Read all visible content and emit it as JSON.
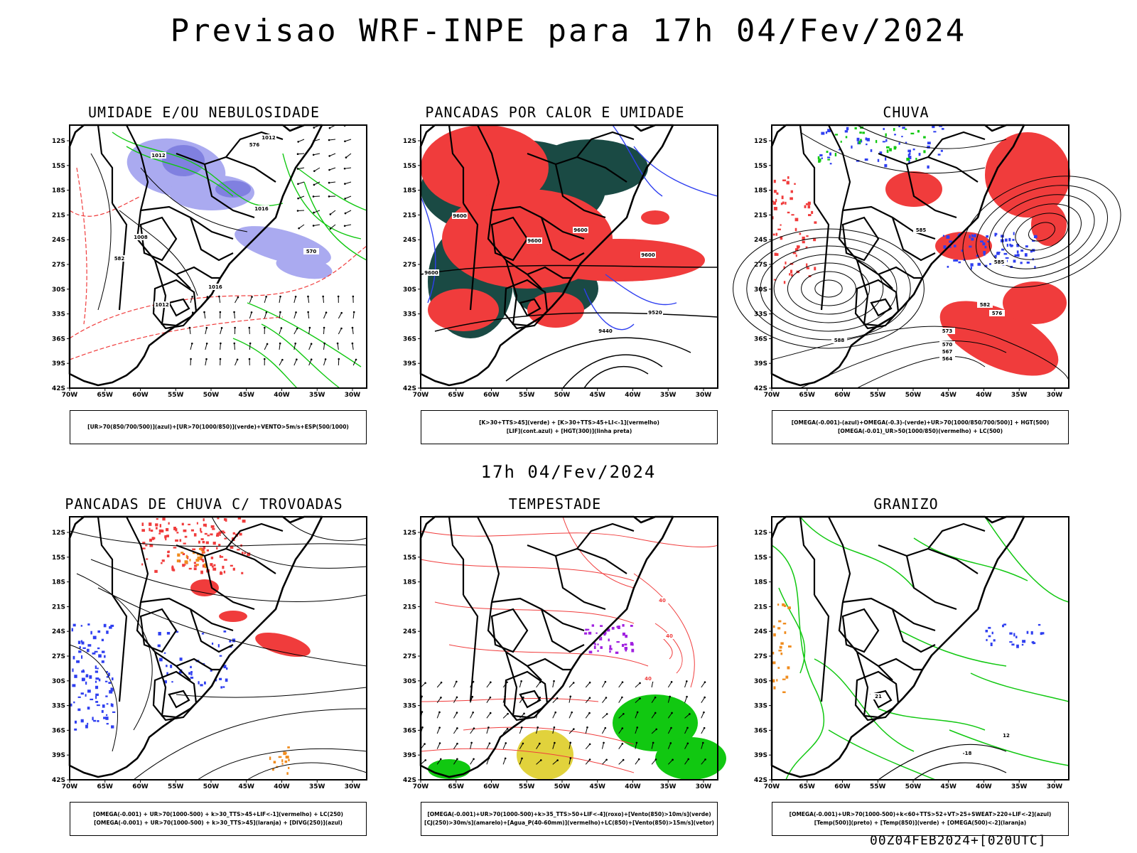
{
  "header": {
    "title": "Previsao WRF-INPE  para 17h 04/Fev/2024",
    "subtitle": "17h 04/Fev/2024",
    "run_stamp": "00Z04FEB2024+[020UTC]"
  },
  "axes": {
    "lat_ticks": [
      "12S",
      "15S",
      "18S",
      "21S",
      "24S",
      "27S",
      "30S",
      "33S",
      "36S",
      "39S",
      "42S"
    ],
    "lon_ticks": [
      "70W",
      "65W",
      "60W",
      "55W",
      "50W",
      "45W",
      "40W",
      "35W",
      "30W"
    ]
  },
  "colors": {
    "red": "#f03c3c",
    "blue": "#2f3ff0",
    "lavender": "#aaaaf0",
    "green": "#11c811",
    "dark_teal": "#1a4a44",
    "yellow": "#e1d23c",
    "orange": "#f08c1e",
    "purple": "#a020e0"
  },
  "panels": [
    {
      "title": "UMIDADE E/OU NEBULOSIDADE",
      "legend": [
        "[UR>70(850/700/500)](azul)+[UR>70(1000/850)](verde)+VENTO>5m/s+ESP(500/1000)"
      ],
      "labels": [
        "1012",
        "1016",
        "1012",
        "1008",
        "1016",
        "576",
        "570",
        "582",
        "1012"
      ]
    },
    {
      "title": "PANCADAS POR CALOR E UMIDADE",
      "legend": [
        "[K>30+TTS>45](verde) + [K>30+TTS>45+LI<-1](vermelho)",
        "[LIF](cont.azul) + [HGT(300)](linha preta)"
      ],
      "labels": [
        "9600",
        "9600",
        "9600",
        "9600",
        "9600",
        "9520",
        "9440"
      ]
    },
    {
      "title": "CHUVA",
      "legend": [
        "[OMEGA(-0.001)-(azul)+OMEGA(-0.3)-(verde)+UR>70(1000/850/700/500)] + HGT(500)",
        "[OMEGA(-0.01)_UR>50(1000/850)(vermelho) + LC(500)"
      ],
      "labels": [
        "585",
        "588",
        "582",
        "576",
        "573",
        "570",
        "567",
        "564",
        "585"
      ]
    },
    {
      "title": "PANCADAS DE CHUVA C/ TROVOADAS",
      "legend": [
        "[OMEGA(-0.001) + UR>70(1000-500) + k>30_TTS>45+LIF<-1](vermelho) + LC(250)",
        "[OMEGA(-0.001) + UR>70(1000-500) + k>30_TTS>45](laranja) + [DIVG(250)](azul)"
      ],
      "labels": []
    },
    {
      "title": "TEMPESTADE",
      "legend": [
        "[OMEGA(-0.001)+UR>70(1000-500)+k>35_TTS>50+LIF<-4](roxo)+[Vento(850)>10m/s](verde)",
        "[CJ(250)>30m/s](amarelo)+[Agua_P(40-60mm)](vermelho)+LC(850)+[Vento(850)>15m/s](vetor)"
      ],
      "labels": [
        "40",
        "40",
        "40"
      ]
    },
    {
      "title": "GRANIZO",
      "legend": [
        "[OMEGA(-0.001)+UR>70(1000-500)+k<60+TTS>52+VT>25+SWEAT>220+LIF<-2](azul)",
        "[Temp(500)](preto) + [Temp(850)](verde) + [OMEGA(500)<-2](laranja)"
      ],
      "labels": [
        "-18",
        "21",
        "12"
      ]
    }
  ]
}
